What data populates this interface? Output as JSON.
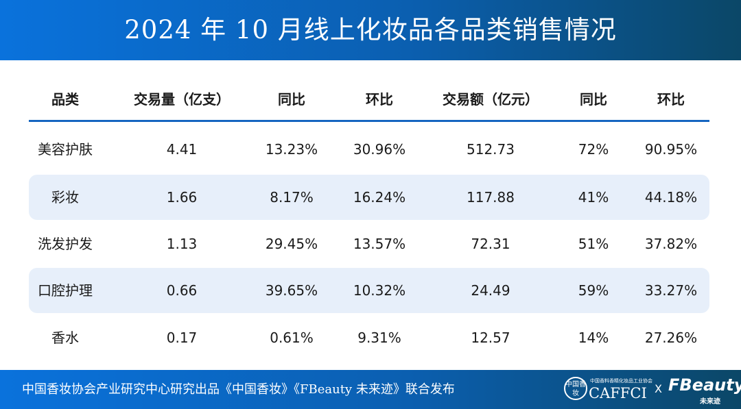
{
  "header": {
    "title": "2024 年 10 月线上化妆品各品类销售情况"
  },
  "table": {
    "columns": [
      "品类",
      "交易量（亿支）",
      "同比",
      "环比",
      "交易额（亿元）",
      "同比",
      "环比"
    ],
    "rows": [
      [
        "美容护肤",
        "4.41",
        "13.23%",
        "30.96%",
        "512.73",
        "72%",
        "90.95%"
      ],
      [
        "彩妆",
        "1.66",
        "8.17%",
        "16.24%",
        "117.88",
        "41%",
        "44.18%"
      ],
      [
        "洗发护发",
        "1.13",
        "29.45%",
        "13.57%",
        "72.31",
        "51%",
        "37.82%"
      ],
      [
        "口腔护理",
        "0.66",
        "39.65%",
        "10.32%",
        "24.49",
        "59%",
        "33.27%"
      ],
      [
        "香水",
        "0.17",
        "0.61%",
        "9.31%",
        "12.57",
        "14%",
        "27.26%"
      ]
    ]
  },
  "footer": {
    "text": "中国香妆协会产业研究中心研究出品《中国香妆》《FBeauty 未来迹》联合发布",
    "logo_mark": "中国香妆",
    "logo_small": "中国香料香精化妆品工业协会",
    "logo_name": "CAFFCI",
    "separator": "X",
    "brand": "FBeauty",
    "brand_sub": "未来迹"
  }
}
